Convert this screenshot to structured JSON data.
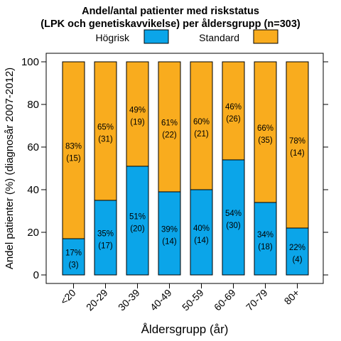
{
  "chart_data": {
    "type": "bar",
    "stacked": true,
    "title_lines": [
      "Andel/antal patienter med riskstatus",
      "(LPK och genetiskavvikelse) per åldersgrupp (n=303)"
    ],
    "xlabel": "Åldersgrupp (år)",
    "ylabel": "Andel patienter (%) (diagnosår 2007-2012)",
    "ylim": [
      0,
      100
    ],
    "yticks": [
      "0",
      "20",
      "40",
      "60",
      "80",
      "100"
    ],
    "grid": false,
    "legend_position": "top",
    "categories": [
      "<20",
      "20-29",
      "30-39",
      "40-49",
      "50-59",
      "60-69",
      "70-79",
      "80+"
    ],
    "series": [
      {
        "name": "Högrisk",
        "color": "#0ba5e9",
        "values": [
          17,
          35,
          51,
          39,
          40,
          54,
          34,
          22
        ],
        "pct_labels": [
          "17%",
          "35%",
          "51%",
          "39%",
          "40%",
          "54%",
          "34%",
          "22%"
        ],
        "count_labels": [
          "(3)",
          "(17)",
          "(20)",
          "(14)",
          "(14)",
          "(30)",
          "(18)",
          "(4)"
        ]
      },
      {
        "name": "Standard",
        "color": "#f9ac1e",
        "values": [
          83,
          65,
          49,
          61,
          60,
          46,
          66,
          78
        ],
        "pct_labels": [
          "83%",
          "65%",
          "49%",
          "61%",
          "60%",
          "46%",
          "66%",
          "78%"
        ],
        "count_labels": [
          "(15)",
          "(31)",
          "(19)",
          "(22)",
          "(21)",
          "(26)",
          "(35)",
          "(14)"
        ]
      }
    ]
  }
}
